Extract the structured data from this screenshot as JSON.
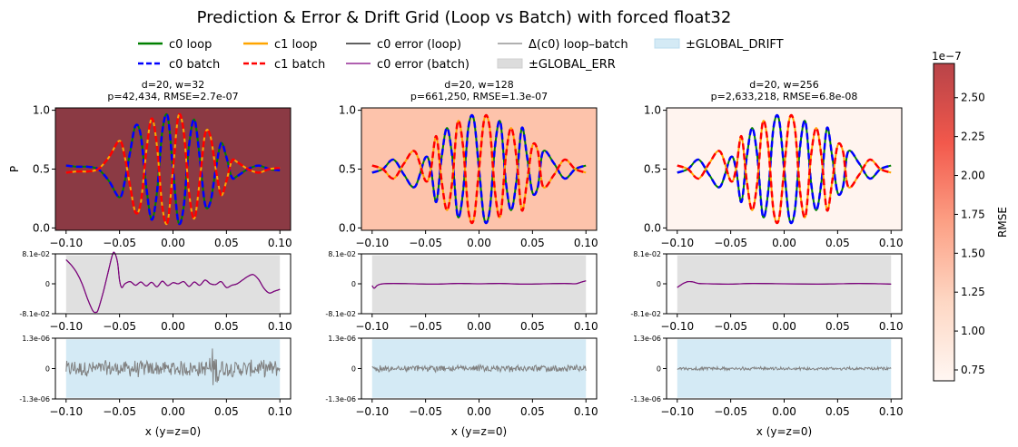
{
  "figure": {
    "title": "Prediction & Error & Drift Grid (Loop vs Batch) with forced float32"
  },
  "legend": {
    "items": [
      {
        "label": "c0 loop",
        "color": "#008000",
        "style": "solid"
      },
      {
        "label": "c0 batch",
        "color": "#0000ff",
        "style": "dashed"
      },
      {
        "label": "c1 loop",
        "color": "#ffa500",
        "style": "solid"
      },
      {
        "label": "c1 batch",
        "color": "#ff0000",
        "style": "dashed"
      },
      {
        "label": "c0 error (loop)",
        "color": "#000000",
        "style": "solid"
      },
      {
        "label": "c0 error (batch)",
        "color": "#800080",
        "style": "solid"
      },
      {
        "label": "Δ(c0) loop–batch",
        "color": "#808080",
        "style": "solid"
      },
      {
        "label": "±GLOBAL_ERR",
        "color": "#dcdcdc",
        "style": "patch"
      },
      {
        "label": "±GLOBAL_DRIFT",
        "color": "#d4eaf5",
        "style": "patch"
      }
    ]
  },
  "colorbar": {
    "label": "RMSE",
    "exponent": "1e−7",
    "ticks": [
      "0.75",
      "1.00",
      "1.25",
      "1.50",
      "1.75",
      "2.00",
      "2.25",
      "2.50"
    ],
    "tick_values": [
      0.75,
      1.0,
      1.25,
      1.5,
      1.75,
      2.0,
      2.25,
      2.5
    ],
    "range": [
      0.68,
      2.72
    ],
    "colormap": [
      "#fff5f0",
      "#fdd0b9",
      "#fc8f6f",
      "#f03b2c",
      "#a50f15"
    ]
  },
  "chart_data": [
    {
      "type": "line",
      "title_line1": "d=20, w=32",
      "title_line2": "p=42,434, RMSE=2.7e-07",
      "ylabel": "P",
      "rmse": 2.7e-07,
      "background": "#8b3a44",
      "xlim": [
        -0.11,
        0.11
      ],
      "ylim": [
        -0.02,
        1.02
      ],
      "xticks": [
        "−0.10",
        "−0.05",
        "0.00",
        "0.05",
        "0.10"
      ],
      "yticks": [
        "0.0",
        "0.5",
        "1.0"
      ],
      "series": [
        {
          "name": "c0 batch",
          "x": [
            -0.1,
            -0.09,
            -0.08,
            -0.07,
            -0.06,
            -0.05,
            -0.045,
            -0.04,
            -0.035,
            -0.03,
            -0.025,
            -0.02,
            -0.015,
            -0.01,
            -0.005,
            0,
            0.005,
            0.01,
            0.015,
            0.02,
            0.025,
            0.03,
            0.035,
            0.04,
            0.045,
            0.05,
            0.055,
            0.06,
            0.07,
            0.08,
            0.09,
            0.1
          ],
          "y": [
            0.53,
            0.52,
            0.52,
            0.5,
            0.4,
            0.26,
            0.4,
            0.65,
            0.87,
            0.78,
            0.35,
            0.07,
            0.3,
            0.82,
            0.95,
            0.5,
            0.05,
            0.18,
            0.7,
            0.92,
            0.6,
            0.2,
            0.22,
            0.5,
            0.72,
            0.6,
            0.43,
            0.44,
            0.5,
            0.53,
            0.5,
            0.49
          ]
        },
        {
          "name": "c1 batch",
          "x": [
            -0.1,
            -0.09,
            -0.08,
            -0.07,
            -0.06,
            -0.05,
            -0.045,
            -0.04,
            -0.035,
            -0.03,
            -0.025,
            -0.02,
            -0.015,
            -0.01,
            -0.005,
            0,
            0.005,
            0.01,
            0.015,
            0.02,
            0.025,
            0.03,
            0.035,
            0.04,
            0.045,
            0.05,
            0.055,
            0.06,
            0.07,
            0.08,
            0.09,
            0.1
          ],
          "y": [
            0.47,
            0.48,
            0.48,
            0.5,
            0.6,
            0.74,
            0.6,
            0.35,
            0.13,
            0.22,
            0.65,
            0.93,
            0.7,
            0.18,
            0.05,
            0.5,
            0.95,
            0.82,
            0.3,
            0.08,
            0.4,
            0.8,
            0.78,
            0.5,
            0.28,
            0.4,
            0.57,
            0.56,
            0.5,
            0.47,
            0.5,
            0.51
          ]
        }
      ],
      "error": {
        "ylim": [
          -0.081,
          0.081
        ],
        "yticks": [
          "8.1e-02",
          "0",
          "-8.1e-02"
        ],
        "band": 0.077,
        "x": [
          -0.1,
          -0.095,
          -0.09,
          -0.085,
          -0.08,
          -0.075,
          -0.072,
          -0.07,
          -0.065,
          -0.06,
          -0.057,
          -0.055,
          -0.052,
          -0.05,
          -0.048,
          -0.045,
          -0.04,
          -0.035,
          -0.03,
          -0.025,
          -0.02,
          -0.015,
          -0.01,
          -0.005,
          0,
          0.005,
          0.01,
          0.015,
          0.02,
          0.025,
          0.03,
          0.035,
          0.04,
          0.045,
          0.05,
          0.055,
          0.06,
          0.065,
          0.07,
          0.075,
          0.08,
          0.085,
          0.09,
          0.095,
          0.1
        ],
        "y": [
          0.065,
          0.05,
          0.03,
          0.0,
          -0.04,
          -0.073,
          -0.077,
          -0.07,
          -0.02,
          0.04,
          0.075,
          0.085,
          0.06,
          0.01,
          -0.01,
          0.0,
          0.006,
          -0.004,
          0.005,
          -0.006,
          0.004,
          -0.008,
          0.007,
          -0.005,
          0.003,
          0.0,
          0.006,
          -0.007,
          0.005,
          -0.004,
          0.01,
          0.0,
          -0.002,
          0.006,
          -0.01,
          -0.004,
          0.0,
          0.01,
          0.02,
          0.025,
          0.012,
          -0.012,
          -0.025,
          -0.02,
          -0.015
        ]
      },
      "drift": {
        "ylim": [
          -1.3e-06,
          1.3e-06
        ],
        "yticks": [
          "1.3e-06",
          "0",
          "-1.3e-06"
        ],
        "band": 1.25e-06,
        "amplitude": 4e-07
      }
    },
    {
      "type": "line",
      "title_line1": "d=20, w=128",
      "title_line2": "p=661,250, RMSE=1.3e-07",
      "rmse": 1.3e-07,
      "background": "#fdc3ab",
      "xlim": [
        -0.11,
        0.11
      ],
      "ylim": [
        -0.02,
        1.02
      ],
      "xticks": [
        "−0.10",
        "−0.05",
        "0.00",
        "0.05",
        "0.10"
      ],
      "yticks": [
        "0.0",
        "0.5",
        "1.0"
      ],
      "series": [
        {
          "name": "c0 batch",
          "x": [
            -0.1,
            -0.09,
            -0.08,
            -0.07,
            -0.06,
            -0.05,
            -0.045,
            -0.04,
            -0.035,
            -0.03,
            -0.025,
            -0.02,
            -0.015,
            -0.01,
            -0.005,
            0,
            0.005,
            0.01,
            0.015,
            0.02,
            0.025,
            0.03,
            0.035,
            0.04,
            0.045,
            0.05,
            0.055,
            0.06,
            0.07,
            0.08,
            0.09,
            0.1
          ],
          "y": [
            0.47,
            0.5,
            0.58,
            0.45,
            0.35,
            0.6,
            0.5,
            0.22,
            0.6,
            0.85,
            0.6,
            0.1,
            0.3,
            0.85,
            0.93,
            0.5,
            0.07,
            0.15,
            0.7,
            0.9,
            0.4,
            0.15,
            0.4,
            0.85,
            0.6,
            0.3,
            0.35,
            0.65,
            0.55,
            0.42,
            0.5,
            0.53
          ]
        },
        {
          "name": "c1 batch",
          "x": [
            -0.1,
            -0.09,
            -0.08,
            -0.07,
            -0.06,
            -0.05,
            -0.045,
            -0.04,
            -0.035,
            -0.03,
            -0.025,
            -0.02,
            -0.015,
            -0.01,
            -0.005,
            0,
            0.005,
            0.01,
            0.015,
            0.02,
            0.025,
            0.03,
            0.035,
            0.04,
            0.045,
            0.05,
            0.055,
            0.06,
            0.07,
            0.08,
            0.09,
            0.1
          ],
          "y": [
            0.53,
            0.5,
            0.42,
            0.55,
            0.65,
            0.4,
            0.5,
            0.78,
            0.4,
            0.15,
            0.4,
            0.9,
            0.7,
            0.15,
            0.07,
            0.5,
            0.93,
            0.85,
            0.3,
            0.1,
            0.6,
            0.85,
            0.6,
            0.15,
            0.4,
            0.7,
            0.65,
            0.35,
            0.45,
            0.58,
            0.5,
            0.47
          ]
        }
      ],
      "error": {
        "ylim": [
          -0.081,
          0.081
        ],
        "yticks": [
          "8.1e-02",
          "0",
          "-8.1e-02"
        ],
        "band": 0.077,
        "x": [
          -0.1,
          -0.098,
          -0.095,
          -0.09,
          -0.08,
          -0.06,
          -0.04,
          -0.02,
          0,
          0.02,
          0.04,
          0.06,
          0.08,
          0.09,
          0.095,
          0.1
        ],
        "y": [
          -0.005,
          -0.012,
          -0.004,
          0.0,
          0.001,
          0.0,
          -0.001,
          0.001,
          0.0,
          0.001,
          -0.001,
          0.0,
          0.001,
          0.0,
          0.004,
          0.008
        ]
      },
      "drift": {
        "ylim": [
          -1.3e-06,
          1.3e-06
        ],
        "yticks": [
          "1.3e-06",
          "0",
          "-1.3e-06"
        ],
        "band": 1.25e-06,
        "amplitude": 1.6e-07
      }
    },
    {
      "type": "line",
      "title_line1": "d=20, w=256",
      "title_line2": "p=2,633,218, RMSE=6.8e-08",
      "rmse": 6.8e-08,
      "background": "#fff4ef",
      "xlim": [
        -0.11,
        0.11
      ],
      "ylim": [
        -0.02,
        1.02
      ],
      "xticks": [
        "−0.10",
        "−0.05",
        "0.00",
        "0.05",
        "0.10"
      ],
      "yticks": [
        "0.0",
        "0.5",
        "1.0"
      ],
      "series": [
        {
          "name": "c0 batch",
          "x": [
            -0.1,
            -0.09,
            -0.08,
            -0.07,
            -0.06,
            -0.05,
            -0.045,
            -0.04,
            -0.035,
            -0.03,
            -0.025,
            -0.02,
            -0.015,
            -0.01,
            -0.005,
            0,
            0.005,
            0.01,
            0.015,
            0.02,
            0.025,
            0.03,
            0.035,
            0.04,
            0.045,
            0.05,
            0.055,
            0.06,
            0.07,
            0.08,
            0.09,
            0.1
          ],
          "y": [
            0.47,
            0.5,
            0.58,
            0.45,
            0.35,
            0.6,
            0.5,
            0.22,
            0.6,
            0.85,
            0.6,
            0.1,
            0.3,
            0.85,
            0.93,
            0.5,
            0.07,
            0.15,
            0.7,
            0.9,
            0.4,
            0.15,
            0.4,
            0.85,
            0.6,
            0.3,
            0.35,
            0.65,
            0.55,
            0.42,
            0.5,
            0.53
          ]
        },
        {
          "name": "c1 batch",
          "x": [
            -0.1,
            -0.09,
            -0.08,
            -0.07,
            -0.06,
            -0.05,
            -0.045,
            -0.04,
            -0.035,
            -0.03,
            -0.025,
            -0.02,
            -0.015,
            -0.01,
            -0.005,
            0,
            0.005,
            0.01,
            0.015,
            0.02,
            0.025,
            0.03,
            0.035,
            0.04,
            0.045,
            0.05,
            0.055,
            0.06,
            0.07,
            0.08,
            0.09,
            0.1
          ],
          "y": [
            0.53,
            0.5,
            0.42,
            0.55,
            0.65,
            0.4,
            0.5,
            0.78,
            0.4,
            0.15,
            0.4,
            0.9,
            0.7,
            0.15,
            0.07,
            0.5,
            0.93,
            0.85,
            0.3,
            0.1,
            0.6,
            0.85,
            0.6,
            0.15,
            0.4,
            0.7,
            0.65,
            0.35,
            0.45,
            0.58,
            0.5,
            0.47
          ]
        }
      ],
      "error": {
        "ylim": [
          -0.081,
          0.081
        ],
        "yticks": [
          "8.1e-02",
          "0",
          "-8.1e-02"
        ],
        "band": 0.077,
        "x": [
          -0.1,
          -0.098,
          -0.095,
          -0.092,
          -0.09,
          -0.085,
          -0.08,
          -0.07,
          -0.05,
          -0.03,
          0,
          0.03,
          0.05,
          0.07,
          0.09,
          0.1
        ],
        "y": [
          -0.01,
          -0.006,
          0.0,
          0.004,
          0.006,
          0.005,
          0.001,
          0.0,
          -0.001,
          0.001,
          0.0,
          -0.001,
          0.0,
          0.001,
          0.0,
          -0.001
        ]
      },
      "drift": {
        "ylim": [
          -1.3e-06,
          1.3e-06
        ],
        "yticks": [
          "1.3e-06",
          "0",
          "-1.3e-06"
        ],
        "band": 1.25e-06,
        "amplitude": 8e-08
      }
    }
  ],
  "shared": {
    "xlabel": "x (y=z=0)"
  }
}
